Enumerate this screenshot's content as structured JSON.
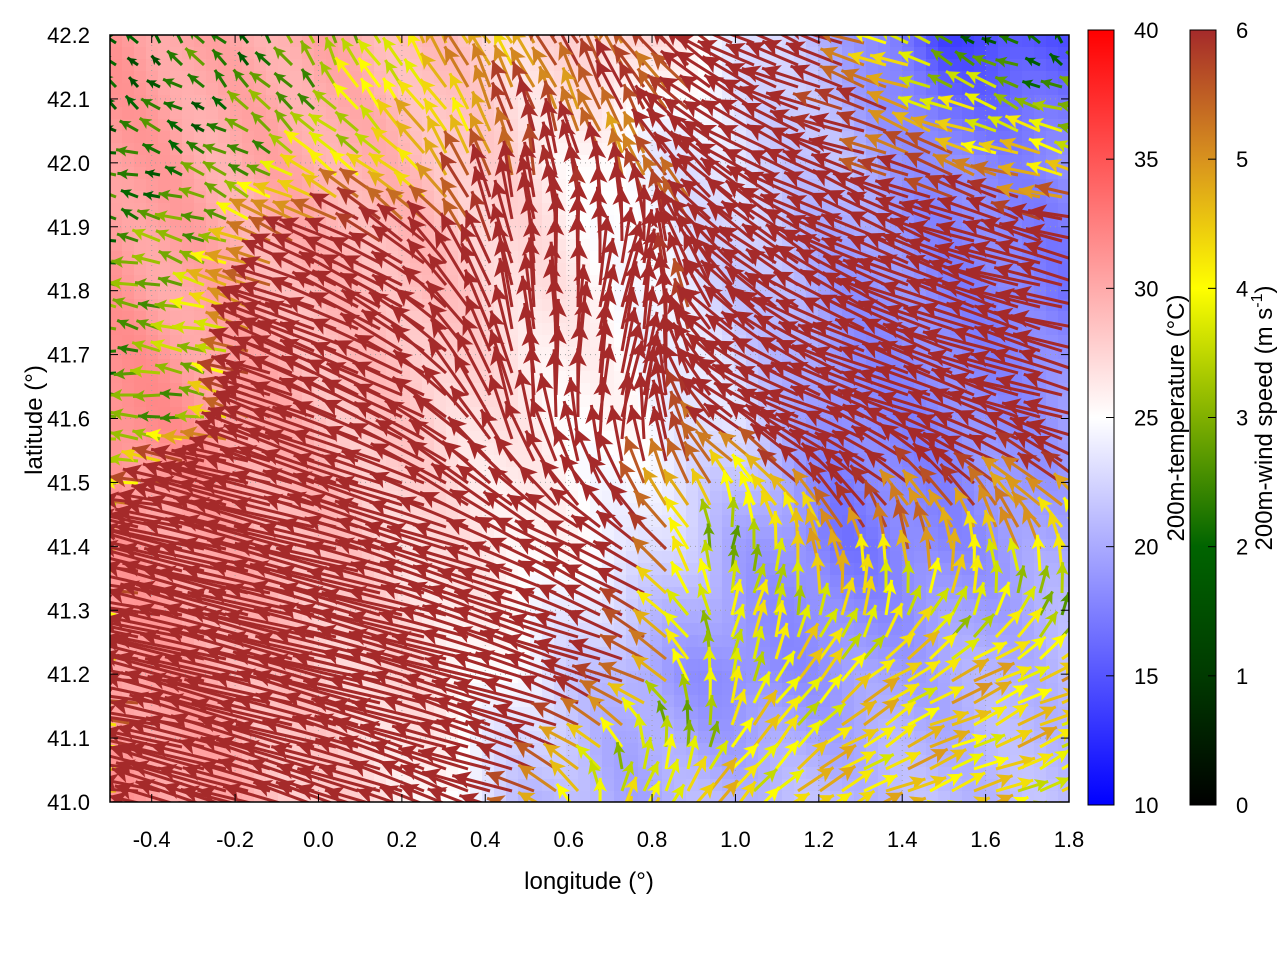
{
  "chart_data": {
    "type": "heatmap",
    "subtype": "heatmap-with-vector-field",
    "xlabel": "longitude (°)",
    "ylabel": "latitude (°)",
    "xlim": [
      -0.5,
      1.8
    ],
    "ylim": [
      41.0,
      42.2
    ],
    "xticks": [
      "-0.4",
      "-0.2",
      "0.0",
      "0.2",
      "0.4",
      "0.6",
      "0.8",
      "1.0",
      "1.2",
      "1.4",
      "1.6",
      "1.8"
    ],
    "yticks": [
      "41.0",
      "41.1",
      "41.2",
      "41.3",
      "41.4",
      "41.5",
      "41.6",
      "41.7",
      "41.8",
      "41.9",
      "42.0",
      "42.1",
      "42.2"
    ],
    "grid": true,
    "temperature": {
      "label": "200m-temperature (°C)",
      "range": [
        10,
        40
      ],
      "ticks": [
        "10",
        "15",
        "20",
        "25",
        "30",
        "35",
        "40"
      ],
      "colors": {
        "low": "#0000ff",
        "mid": "#ffffff",
        "high": "#ff0000"
      },
      "grid_lon": [
        -0.5,
        -0.25,
        0.0,
        0.25,
        0.5,
        0.75,
        1.0,
        1.25,
        1.5,
        1.8
      ],
      "grid_lat": [
        42.2,
        42.0,
        41.8,
        41.6,
        41.4,
        41.2,
        41.0
      ],
      "values": [
        [
          31,
          30,
          30,
          29,
          27,
          28,
          24,
          20,
          14,
          15
        ],
        [
          31,
          30,
          30,
          29,
          27,
          24,
          23,
          21,
          18,
          18
        ],
        [
          31,
          30,
          29,
          29,
          27,
          25,
          22,
          19,
          18,
          17
        ],
        [
          32,
          31,
          29,
          28,
          26,
          25,
          23,
          18,
          18,
          19
        ],
        [
          31,
          30,
          29,
          27,
          26,
          24,
          20,
          17,
          18,
          20
        ],
        [
          31,
          30,
          28,
          27,
          24,
          20,
          18,
          19,
          20,
          21
        ],
        [
          31,
          30,
          28,
          26,
          21,
          20,
          21,
          21,
          21,
          21
        ]
      ]
    },
    "wind": {
      "label_main": "200m-wind speed (m s",
      "label_sup": "-1",
      "label_end": ")",
      "range": [
        0,
        6
      ],
      "ticks": [
        "0",
        "1",
        "2",
        "3",
        "4",
        "5",
        "6"
      ],
      "colors": [
        "#000000",
        "#003a00",
        "#006400",
        "#80b000",
        "#ffff00",
        "#d8921e",
        "#a52a2a"
      ],
      "grid_lon": [
        -0.5,
        -0.25,
        0.0,
        0.25,
        0.5,
        0.75,
        1.0,
        1.25,
        1.5,
        1.8
      ],
      "grid_lat": [
        42.2,
        42.0,
        41.8,
        41.6,
        41.4,
        41.2,
        41.0
      ],
      "u": [
        [
          -1,
          -1.5,
          -1,
          -2,
          -3,
          -3,
          -6,
          -6,
          -2,
          -1
        ],
        [
          -2,
          -2,
          -3,
          -3,
          -1,
          -2,
          -6,
          -6,
          -5,
          -4
        ],
        [
          -2.5,
          -3.5,
          -8,
          -6,
          -1,
          2,
          -5,
          -7,
          -8,
          -8
        ],
        [
          -2.5,
          -3,
          -10,
          -8,
          -1,
          2,
          -6,
          -8,
          -8,
          -7
        ],
        [
          -4,
          -12,
          -12,
          -10,
          -7,
          -6,
          1,
          -2,
          -1,
          -2
        ],
        [
          -4,
          -12,
          -12,
          -12,
          -10,
          -6,
          1,
          3,
          4,
          4
        ],
        [
          -4,
          -10,
          -10,
          -8,
          -6,
          2,
          3,
          4,
          4,
          3.5
        ]
      ],
      "v": [
        [
          1.5,
          1.5,
          2.5,
          4,
          4,
          5,
          3,
          2,
          1,
          1
        ],
        [
          0.5,
          1,
          2,
          3,
          6,
          5,
          4,
          2,
          2,
          1
        ],
        [
          0.5,
          1,
          3,
          4,
          8,
          7,
          5,
          4,
          3,
          2
        ],
        [
          0,
          0.5,
          4,
          4,
          8,
          8,
          4,
          3,
          3,
          2
        ],
        [
          0.5,
          3,
          3,
          3,
          3,
          4,
          3,
          5,
          5,
          4
        ],
        [
          0,
          3,
          3,
          3,
          3,
          2,
          4,
          3,
          2,
          2
        ],
        [
          0,
          3,
          3,
          3,
          2,
          4,
          3,
          2,
          1.5,
          1.5
        ]
      ]
    }
  }
}
